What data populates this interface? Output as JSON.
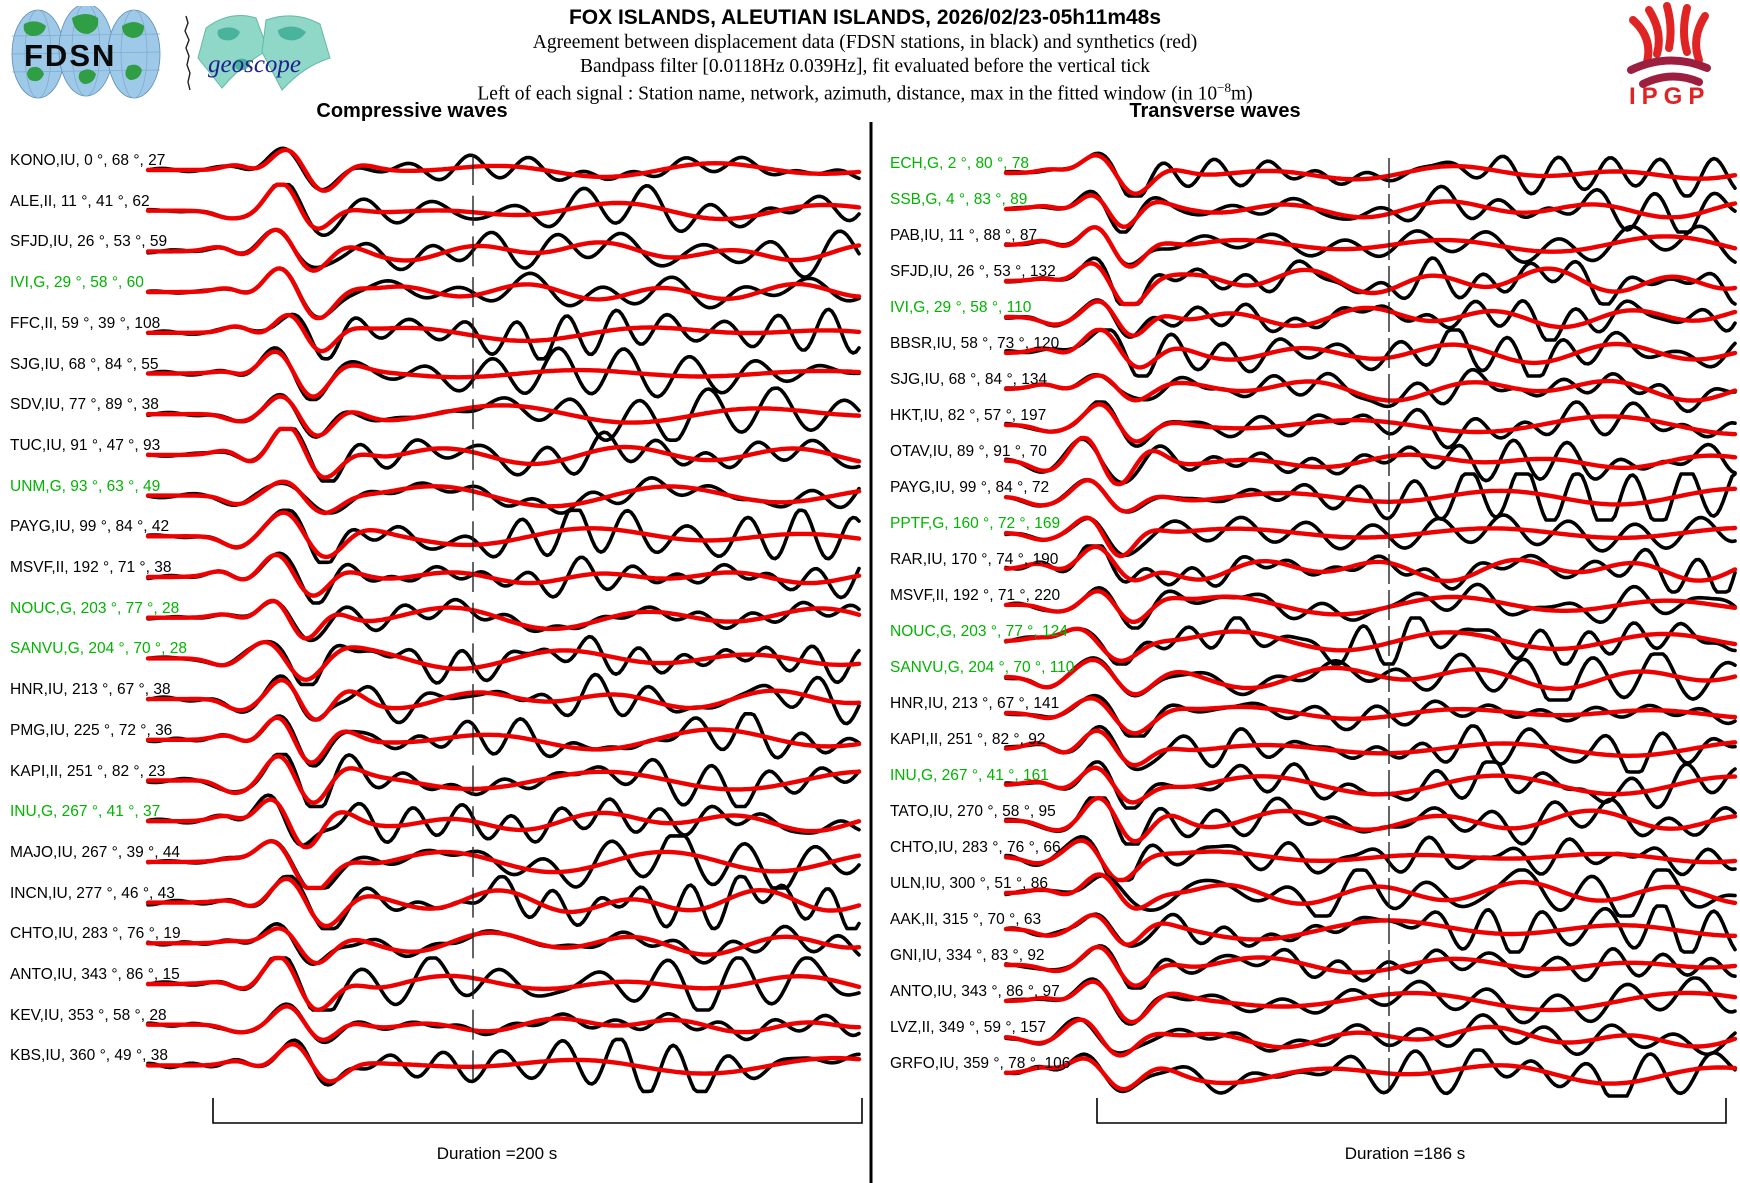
{
  "header": {
    "title": "FOX ISLANDS, ALEUTIAN ISLANDS, 2026/02/23-05h11m48s",
    "subtitle1": "Agreement between displacement data (FDSN stations, in black) and synthetics (red)",
    "subtitle2": "Bandpass filter [0.0118Hz 0.039Hz], fit evaluated before the vertical tick",
    "subtitle3_pre": "Left of each signal : Station name, network, azimuth, distance, max in the fitted window (in 10",
    "subtitle3_sup": "−8",
    "subtitle3_post": "m)"
  },
  "logos": {
    "fdsn": "FDSN",
    "geoscope": "geoscope",
    "ipgp": "IPGP"
  },
  "colors": {
    "data_trace": "#000000",
    "synthetic_trace": "#ee0000",
    "geoscope_station_label": "#00b400"
  },
  "chart_data": [
    {
      "type": "line",
      "title": "Compressive waves",
      "duration_label": "Duration =200 s",
      "duration_s": 200,
      "legend": {
        "black": "displacement data (FDSN stations)",
        "red": "synthetics"
      },
      "stations": [
        {
          "station": "KONO",
          "network": "IU",
          "az": 0,
          "dist": 68,
          "max": 27,
          "green": false
        },
        {
          "station": "ALE",
          "network": "II",
          "az": 11,
          "dist": 41,
          "max": 62,
          "green": false
        },
        {
          "station": "SFJD",
          "network": "IU",
          "az": 26,
          "dist": 53,
          "max": 59,
          "green": false
        },
        {
          "station": "IVI",
          "network": "G",
          "az": 29,
          "dist": 58,
          "max": 60,
          "green": true
        },
        {
          "station": "FFC",
          "network": "II",
          "az": 59,
          "dist": 39,
          "max": 108,
          "green": false
        },
        {
          "station": "SJG",
          "network": "IU",
          "az": 68,
          "dist": 84,
          "max": 55,
          "green": false
        },
        {
          "station": "SDV",
          "network": "IU",
          "az": 77,
          "dist": 89,
          "max": 38,
          "green": false
        },
        {
          "station": "TUC",
          "network": "IU",
          "az": 91,
          "dist": 47,
          "max": 93,
          "green": false
        },
        {
          "station": "UNM",
          "network": "G",
          "az": 93,
          "dist": 63,
          "max": 49,
          "green": true
        },
        {
          "station": "PAYG",
          "network": "IU",
          "az": 99,
          "dist": 84,
          "max": 42,
          "green": false
        },
        {
          "station": "MSVF",
          "network": "II",
          "az": 192,
          "dist": 71,
          "max": 38,
          "green": false
        },
        {
          "station": "NOUC",
          "network": "G",
          "az": 203,
          "dist": 77,
          "max": 28,
          "green": true
        },
        {
          "station": "SANVU",
          "network": "G",
          "az": 204,
          "dist": 70,
          "max": 28,
          "green": true
        },
        {
          "station": "HNR",
          "network": "IU",
          "az": 213,
          "dist": 67,
          "max": 38,
          "green": false
        },
        {
          "station": "PMG",
          "network": "IU",
          "az": 225,
          "dist": 72,
          "max": 36,
          "green": false
        },
        {
          "station": "KAPI",
          "network": "II",
          "az": 251,
          "dist": 82,
          "max": 23,
          "green": false
        },
        {
          "station": "INU",
          "network": "G",
          "az": 267,
          "dist": 41,
          "max": 37,
          "green": true
        },
        {
          "station": "MAJO",
          "network": "IU",
          "az": 267,
          "dist": 39,
          "max": 44,
          "green": false
        },
        {
          "station": "INCN",
          "network": "IU",
          "az": 277,
          "dist": 46,
          "max": 43,
          "green": false
        },
        {
          "station": "CHTO",
          "network": "IU",
          "az": 283,
          "dist": 76,
          "max": 19,
          "green": false
        },
        {
          "station": "ANTO",
          "network": "IU",
          "az": 343,
          "dist": 86,
          "max": 15,
          "green": false
        },
        {
          "station": "KEV",
          "network": "IU",
          "az": 353,
          "dist": 58,
          "max": 28,
          "green": false
        },
        {
          "station": "KBS",
          "network": "IU",
          "az": 360,
          "dist": 49,
          "max": 38,
          "green": false
        }
      ]
    },
    {
      "type": "line",
      "title": "Transverse waves",
      "duration_label": "Duration =186 s",
      "duration_s": 186,
      "legend": {
        "black": "displacement data (FDSN stations)",
        "red": "synthetics"
      },
      "stations": [
        {
          "station": "ECH",
          "network": "G",
          "az": 2,
          "dist": 80,
          "max": 78,
          "green": true
        },
        {
          "station": "SSB",
          "network": "G",
          "az": 4,
          "dist": 83,
          "max": 89,
          "green": true
        },
        {
          "station": "PAB",
          "network": "IU",
          "az": 11,
          "dist": 88,
          "max": 87,
          "green": false
        },
        {
          "station": "SFJD",
          "network": "IU",
          "az": 26,
          "dist": 53,
          "max": 132,
          "green": false
        },
        {
          "station": "IVI",
          "network": "G",
          "az": 29,
          "dist": 58,
          "max": 110,
          "green": true
        },
        {
          "station": "BBSR",
          "network": "IU",
          "az": 58,
          "dist": 73,
          "max": 120,
          "green": false
        },
        {
          "station": "SJG",
          "network": "IU",
          "az": 68,
          "dist": 84,
          "max": 134,
          "green": false
        },
        {
          "station": "HKT",
          "network": "IU",
          "az": 82,
          "dist": 57,
          "max": 197,
          "green": false
        },
        {
          "station": "OTAV",
          "network": "IU",
          "az": 89,
          "dist": 91,
          "max": 70,
          "green": false
        },
        {
          "station": "PAYG",
          "network": "IU",
          "az": 99,
          "dist": 84,
          "max": 72,
          "green": false
        },
        {
          "station": "PPTF",
          "network": "G",
          "az": 160,
          "dist": 72,
          "max": 169,
          "green": true
        },
        {
          "station": "RAR",
          "network": "IU",
          "az": 170,
          "dist": 74,
          "max": 190,
          "green": false
        },
        {
          "station": "MSVF",
          "network": "II",
          "az": 192,
          "dist": 71,
          "max": 220,
          "green": false
        },
        {
          "station": "NOUC",
          "network": "G",
          "az": 203,
          "dist": 77,
          "max": 124,
          "green": true
        },
        {
          "station": "SANVU",
          "network": "G",
          "az": 204,
          "dist": 70,
          "max": 110,
          "green": true
        },
        {
          "station": "HNR",
          "network": "IU",
          "az": 213,
          "dist": 67,
          "max": 141,
          "green": false
        },
        {
          "station": "KAPI",
          "network": "II",
          "az": 251,
          "dist": 82,
          "max": 92,
          "green": false
        },
        {
          "station": "INU",
          "network": "G",
          "az": 267,
          "dist": 41,
          "max": 161,
          "green": true
        },
        {
          "station": "TATO",
          "network": "IU",
          "az": 270,
          "dist": 58,
          "max": 95,
          "green": false
        },
        {
          "station": "CHTO",
          "network": "IU",
          "az": 283,
          "dist": 76,
          "max": 66,
          "green": false
        },
        {
          "station": "ULN",
          "network": "IU",
          "az": 300,
          "dist": 51,
          "max": 86,
          "green": false
        },
        {
          "station": "AAK",
          "network": "II",
          "az": 315,
          "dist": 70,
          "max": 63,
          "green": false
        },
        {
          "station": "GNI",
          "network": "IU",
          "az": 334,
          "dist": 83,
          "max": 92,
          "green": false
        },
        {
          "station": "ANTO",
          "network": "IU",
          "az": 343,
          "dist": 86,
          "max": 97,
          "green": false
        },
        {
          "station": "LVZ",
          "network": "II",
          "az": 349,
          "dist": 59,
          "max": 157,
          "green": false
        },
        {
          "station": "GRFO",
          "network": "IU",
          "az": 359,
          "dist": 78,
          "max": 106,
          "green": false
        }
      ]
    }
  ]
}
